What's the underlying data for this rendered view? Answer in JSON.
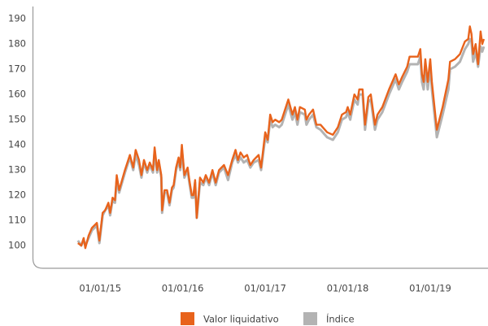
{
  "chart_data": {
    "type": "line",
    "x": [
      2014.73,
      2014.77,
      2014.8,
      2014.82,
      2014.86,
      2014.9,
      2014.96,
      2014.99,
      2015.03,
      2015.06,
      2015.1,
      2015.12,
      2015.15,
      2015.18,
      2015.2,
      2015.23,
      2015.3,
      2015.36,
      2015.4,
      2015.43,
      2015.47,
      2015.5,
      2015.53,
      2015.57,
      2015.6,
      2015.64,
      2015.66,
      2015.69,
      2015.71,
      2015.74,
      2015.75,
      2015.78,
      2015.81,
      2015.84,
      2015.87,
      2015.89,
      2015.92,
      2015.95,
      2015.97,
      2015.99,
      2016.02,
      2016.06,
      2016.08,
      2016.11,
      2016.13,
      2016.15,
      2016.17,
      2016.21,
      2016.25,
      2016.28,
      2016.32,
      2016.36,
      2016.4,
      2016.44,
      2016.5,
      2016.55,
      2016.6,
      2016.64,
      2016.67,
      2016.7,
      2016.74,
      2016.78,
      2016.82,
      2016.86,
      2016.92,
      2016.95,
      2017.0,
      2017.03,
      2017.06,
      2017.09,
      2017.12,
      2017.17,
      2017.2,
      2017.28,
      2017.33,
      2017.36,
      2017.39,
      2017.42,
      2017.48,
      2017.5,
      2017.53,
      2017.58,
      2017.62,
      2017.67,
      2017.75,
      2017.82,
      2017.88,
      2017.93,
      2017.98,
      2018.0,
      2018.03,
      2018.08,
      2018.12,
      2018.14,
      2018.18,
      2018.21,
      2018.25,
      2018.28,
      2018.33,
      2018.36,
      2018.42,
      2018.5,
      2018.58,
      2018.62,
      2018.66,
      2018.72,
      2018.75,
      2018.85,
      2018.88,
      2018.9,
      2018.92,
      2018.94,
      2018.97,
      2019.0,
      2019.02,
      2019.08,
      2019.15,
      2019.22,
      2019.24,
      2019.3,
      2019.36,
      2019.42,
      2019.46,
      2019.48,
      2019.5,
      2019.52,
      2019.55,
      2019.58,
      2019.61,
      2019.63,
      2019.65
    ],
    "series": [
      {
        "name": "Valor liquidativo",
        "color": "#e8631c",
        "values": [
          101,
          100,
          103,
          99,
          104,
          107,
          109,
          102,
          113,
          114,
          117,
          113,
          119,
          118,
          128,
          122,
          130,
          136,
          131,
          138,
          134,
          128,
          134,
          130,
          133,
          130,
          139,
          130,
          134,
          128,
          114,
          122,
          122,
          117,
          123,
          124,
          131,
          135,
          131,
          140,
          128,
          131,
          126,
          120,
          120,
          126,
          111,
          127,
          125,
          128,
          125,
          130,
          125,
          130,
          132,
          128,
          134,
          138,
          134,
          137,
          135,
          136,
          132,
          134,
          136,
          131,
          145,
          142,
          152,
          149,
          150,
          149,
          150,
          158,
          152,
          155,
          150,
          155,
          154,
          150,
          152,
          154,
          148,
          148,
          145,
          144,
          147,
          152,
          153,
          155,
          152,
          160,
          158,
          162,
          162,
          148,
          159,
          160,
          148,
          152,
          155,
          162,
          168,
          164,
          167,
          171,
          175,
          175,
          178,
          168,
          165,
          174,
          165,
          174,
          165,
          146,
          155,
          166,
          173,
          174,
          176,
          181,
          182,
          187,
          184,
          176,
          180,
          172,
          185,
          180,
          182
        ]
      },
      {
        "name": "Índice",
        "color": "#b3b3b3",
        "values": [
          102,
          100,
          102,
          100,
          103,
          106,
          108,
          101,
          112,
          114,
          116,
          112,
          118,
          117,
          126,
          121,
          129,
          135,
          130,
          136,
          132,
          127,
          133,
          129,
          132,
          129,
          137,
          129,
          133,
          127,
          113,
          121,
          121,
          116,
          122,
          123,
          130,
          134,
          130,
          138,
          127,
          130,
          125,
          119,
          119,
          125,
          111,
          125,
          124,
          127,
          124,
          129,
          124,
          129,
          131,
          126,
          133,
          136,
          133,
          135,
          133,
          134,
          131,
          133,
          134,
          130,
          143,
          141,
          150,
          147,
          148,
          147,
          148,
          156,
          150,
          153,
          148,
          153,
          152,
          148,
          150,
          152,
          147,
          146,
          143,
          142,
          145,
          150,
          151,
          153,
          150,
          158,
          156,
          160,
          160,
          146,
          157,
          158,
          146,
          150,
          153,
          160,
          166,
          162,
          165,
          169,
          172,
          172,
          175,
          165,
          162,
          171,
          162,
          171,
          162,
          143,
          152,
          162,
          170,
          171,
          173,
          178,
          180,
          182,
          181,
          173,
          177,
          171,
          179,
          177,
          179
        ]
      }
    ],
    "xlim": [
      2014.18,
      2019.7
    ],
    "xticks": [
      {
        "value": 2015,
        "label": "01/01/15"
      },
      {
        "value": 2016,
        "label": "01/01/16"
      },
      {
        "value": 2017,
        "label": "01/01/17"
      },
      {
        "value": 2018,
        "label": "01/01/18"
      },
      {
        "value": 2019,
        "label": "01/01/19"
      }
    ],
    "ylim": [
      91,
      197.5
    ],
    "yticks": [
      100,
      110,
      120,
      130,
      140,
      150,
      160,
      170,
      180,
      190
    ]
  }
}
